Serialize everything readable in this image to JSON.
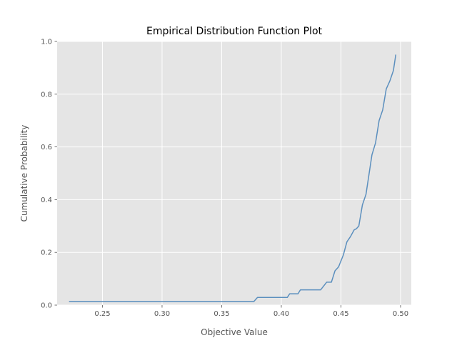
{
  "chart_data": {
    "type": "line",
    "title": "Empirical Distribution Function Plot",
    "xlabel": "Objective Value",
    "ylabel": "Cumulative Probability",
    "xlim": [
      0.212,
      0.509
    ],
    "ylim": [
      0.0,
      1.0
    ],
    "xticks": [
      "0.25",
      "0.30",
      "0.35",
      "0.40",
      "0.45",
      "0.50"
    ],
    "yticks": [
      "0.0",
      "0.2",
      "0.4",
      "0.6",
      "0.8",
      "1.0"
    ],
    "grid": true,
    "style": "ggplot",
    "series": [
      {
        "color": "#5b8fbe",
        "x": [
          0.222,
          0.377,
          0.38,
          0.405,
          0.407,
          0.414,
          0.416,
          0.433,
          0.438,
          0.442,
          0.445,
          0.448,
          0.452,
          0.455,
          0.458,
          0.461,
          0.463,
          0.465,
          0.468,
          0.471,
          0.473,
          0.476,
          0.479,
          0.482,
          0.485,
          0.488,
          0.491,
          0.494,
          0.496
        ],
        "y": [
          0.014,
          0.014,
          0.029,
          0.029,
          0.043,
          0.043,
          0.058,
          0.058,
          0.087,
          0.087,
          0.13,
          0.145,
          0.19,
          0.24,
          0.26,
          0.285,
          0.29,
          0.3,
          0.38,
          0.42,
          0.48,
          0.57,
          0.615,
          0.7,
          0.74,
          0.82,
          0.85,
          0.89,
          0.95
        ]
      }
    ]
  }
}
